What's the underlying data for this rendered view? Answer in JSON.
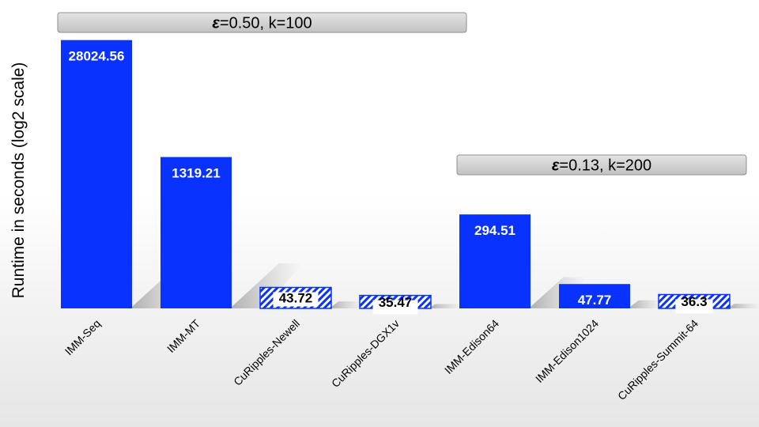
{
  "chart_data": {
    "type": "bar",
    "ylabel": "Runtime in seconds (log2 scale)",
    "yscale": "log2",
    "grid": false,
    "categories": [
      "IMM-Seq",
      "IMM-MT",
      "CuRipples-Newell",
      "CuRipples-DGX1v",
      "IMM-Edison64",
      "IMM-Edison1024",
      "CuRipples-Summit-64"
    ],
    "values": [
      28024.56,
      1319.21,
      43.72,
      35.47,
      294.51,
      47.77,
      36.3
    ],
    "value_labels": [
      "28024.56",
      "1319.21",
      "43.72",
      "35.47",
      "294.51",
      "47.77",
      "36.3"
    ],
    "styles": [
      "solid",
      "solid",
      "hatched",
      "hatched",
      "solid",
      "solid",
      "hatched"
    ],
    "colors": {
      "bar": "#0a32ff",
      "hatch_bg": "#ffffff",
      "label_on_solid": "#ffffff",
      "label_on_hatched": "#000000"
    },
    "annotations": [
      {
        "symbol": "ε",
        "text": "=0.50, k=100",
        "group": [
          "IMM-Seq",
          "IMM-MT",
          "CuRipples-Newell",
          "CuRipples-DGX1v"
        ]
      },
      {
        "symbol": "ε",
        "text": "=0.13, k=200",
        "group": [
          "IMM-Edison64",
          "IMM-Edison1024",
          "CuRipples-Summit-64"
        ]
      }
    ]
  }
}
